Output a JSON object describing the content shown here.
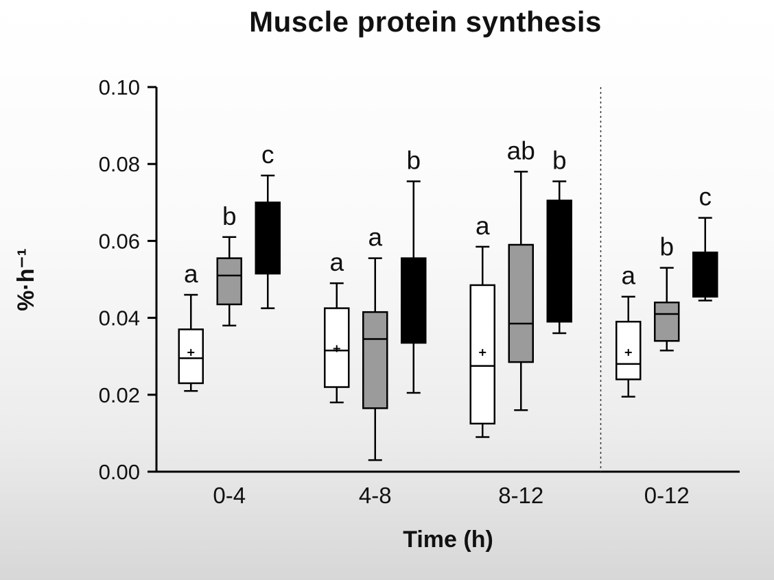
{
  "chart_data": {
    "type": "box",
    "title": "Muscle protein synthesis",
    "xlabel": "Time (h)",
    "ylabel": "%·h⁻¹",
    "ylim": [
      0.0,
      0.1
    ],
    "yticks": [
      0.0,
      0.02,
      0.04,
      0.06,
      0.08,
      0.1
    ],
    "categories": [
      "0-4",
      "4-8",
      "8-12",
      "0-12"
    ],
    "grid": false,
    "legend": "none",
    "separator_after_category_index": 2,
    "colors": {
      "axis": "#000000",
      "white_box": "#ffffff",
      "gray_box": "#9b9b9b",
      "black_box": "#000000"
    },
    "series": [
      {
        "name": "white",
        "fill": "#ffffff",
        "boxes": [
          {
            "low": 0.021,
            "q1": 0.023,
            "median": 0.0295,
            "q3": 0.037,
            "high": 0.046,
            "mean": 0.031,
            "letter": "a"
          },
          {
            "low": 0.018,
            "q1": 0.022,
            "median": 0.0315,
            "q3": 0.0425,
            "high": 0.049,
            "mean": 0.032,
            "letter": "a"
          },
          {
            "low": 0.009,
            "q1": 0.0125,
            "median": 0.0275,
            "q3": 0.0485,
            "high": 0.0585,
            "mean": 0.031,
            "letter": "a"
          },
          {
            "low": 0.0195,
            "q1": 0.024,
            "median": 0.028,
            "q3": 0.039,
            "high": 0.0455,
            "mean": 0.031,
            "letter": "a"
          }
        ]
      },
      {
        "name": "gray",
        "fill": "#9b9b9b",
        "boxes": [
          {
            "low": 0.038,
            "q1": 0.0435,
            "median": 0.051,
            "q3": 0.0555,
            "high": 0.061,
            "mean": null,
            "letter": "b"
          },
          {
            "low": 0.003,
            "q1": 0.0165,
            "median": 0.0345,
            "q3": 0.0415,
            "high": 0.0555,
            "mean": null,
            "letter": "a"
          },
          {
            "low": 0.016,
            "q1": 0.0285,
            "median": 0.0385,
            "q3": 0.059,
            "high": 0.078,
            "mean": null,
            "letter": "ab"
          },
          {
            "low": 0.0315,
            "q1": 0.034,
            "median": 0.041,
            "q3": 0.044,
            "high": 0.053,
            "mean": null,
            "letter": "b"
          }
        ]
      },
      {
        "name": "black",
        "fill": "#000000",
        "boxes": [
          {
            "low": 0.0425,
            "q1": 0.0515,
            "median": null,
            "q3": 0.07,
            "high": 0.077,
            "mean": null,
            "letter": "c"
          },
          {
            "low": 0.0205,
            "q1": 0.0335,
            "median": null,
            "q3": 0.0555,
            "high": 0.0755,
            "mean": null,
            "letter": "b"
          },
          {
            "low": 0.036,
            "q1": 0.039,
            "median": null,
            "q3": 0.0705,
            "high": 0.0755,
            "mean": null,
            "letter": "b"
          },
          {
            "low": 0.0445,
            "q1": 0.0455,
            "median": null,
            "q3": 0.057,
            "high": 0.066,
            "mean": null,
            "letter": "c"
          }
        ]
      }
    ]
  }
}
